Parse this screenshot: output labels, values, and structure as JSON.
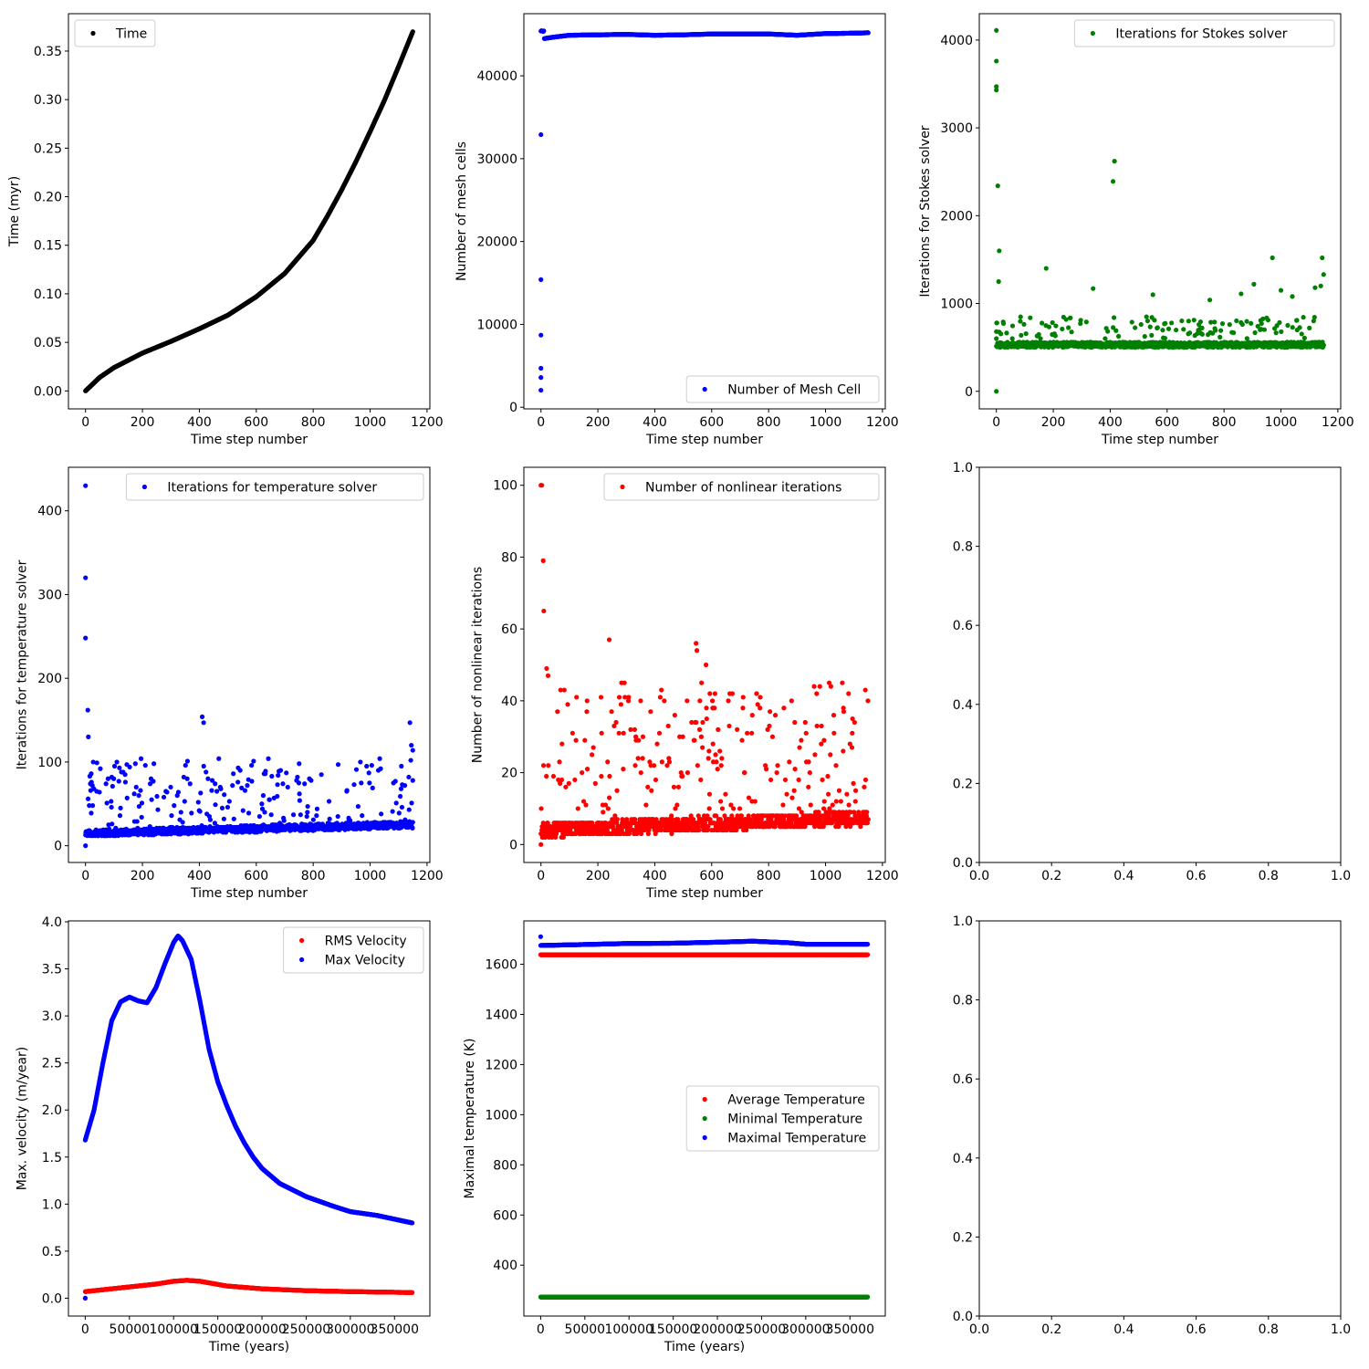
{
  "figure": {
    "background": "#ffffff"
  },
  "chart_data": [
    {
      "id": "p1",
      "type": "scatter",
      "title": "",
      "xlabel": "Time step number",
      "ylabel": "Time (myr)",
      "xlim": [
        -60,
        1210
      ],
      "ylim": [
        -0.0185,
        0.3885
      ],
      "xticks": [
        0,
        200,
        400,
        600,
        800,
        1000,
        1200
      ],
      "xtick_labels": [
        "0",
        "200",
        "400",
        "600",
        "800",
        "1000",
        "1200"
      ],
      "yticks": [
        0,
        0.05,
        0.1,
        0.15,
        0.2,
        0.25,
        0.3,
        0.35
      ],
      "ytick_labels": [
        "0.00",
        "0.05",
        "0.10",
        "0.15",
        "0.20",
        "0.25",
        "0.30",
        "0.35"
      ],
      "legend": {
        "position": "upper-left",
        "entries": [
          "Time"
        ]
      },
      "series": [
        {
          "name": "Time",
          "color": "#000000",
          "kind": "curve",
          "n": 1150,
          "x": [
            0,
            50,
            100,
            200,
            300,
            400,
            500,
            600,
            700,
            800,
            850,
            900,
            950,
            1000,
            1050,
            1100,
            1150
          ],
          "y": [
            0,
            0.014,
            0.024,
            0.039,
            0.051,
            0.064,
            0.078,
            0.097,
            0.121,
            0.155,
            0.18,
            0.207,
            0.236,
            0.267,
            0.299,
            0.334,
            0.37
          ]
        }
      ]
    },
    {
      "id": "p2",
      "type": "scatter",
      "title": "",
      "xlabel": "Time step number",
      "ylabel": "Number of mesh cells",
      "xlim": [
        -60,
        1210
      ],
      "ylim": [
        -200,
        47500
      ],
      "xticks": [
        0,
        200,
        400,
        600,
        800,
        1000,
        1200
      ],
      "xtick_labels": [
        "0",
        "200",
        "400",
        "600",
        "800",
        "1000",
        "1200"
      ],
      "yticks": [
        0,
        10000,
        20000,
        30000,
        40000
      ],
      "ytick_labels": [
        "0",
        "10000",
        "20000",
        "30000",
        "40000"
      ],
      "legend": {
        "position": "lower-right",
        "entries": [
          "Number of Mesh Cell"
        ]
      },
      "series": [
        {
          "name": "Number of Mesh Cell",
          "color": "#0000ff",
          "kind": "curve",
          "n": 1150,
          "x": [
            12,
            40,
            100,
            200,
            300,
            400,
            500,
            600,
            700,
            800,
            900,
            1000,
            1100,
            1150
          ],
          "y": [
            44500,
            44650,
            44900,
            44950,
            45000,
            44900,
            44950,
            45050,
            45050,
            45050,
            44900,
            45100,
            45150,
            45200
          ],
          "extra_points": [
            [
              0,
              2048
            ],
            [
              0,
              3584
            ],
            [
              0,
              4700
            ],
            [
              0,
              8700
            ],
            [
              0,
              15400
            ],
            [
              0,
              32900
            ],
            [
              0,
              45400
            ],
            [
              2,
              45450
            ],
            [
              5,
              45400
            ],
            [
              8,
              45350
            ],
            [
              10,
              45420
            ]
          ]
        }
      ]
    },
    {
      "id": "p3",
      "type": "scatter",
      "title": "",
      "xlabel": "Time step number",
      "ylabel": "Iterations for Stokes solver",
      "xlim": [
        -60,
        1210
      ],
      "ylim": [
        -200,
        4300
      ],
      "xticks": [
        0,
        200,
        400,
        600,
        800,
        1000,
        1200
      ],
      "xtick_labels": [
        "0",
        "200",
        "400",
        "600",
        "800",
        "1000",
        "1200"
      ],
      "yticks": [
        0,
        1000,
        2000,
        3000,
        4000
      ],
      "ytick_labels": [
        "0",
        "1000",
        "2000",
        "3000",
        "4000"
      ],
      "legend": {
        "position": "upper-right",
        "entries": [
          "Iterations for Stokes solver"
        ]
      },
      "series": [
        {
          "name": "Iterations for Stokes solver",
          "color": "#008000",
          "kind": "noisy",
          "n": 1150,
          "x_range": [
            0,
            1150
          ],
          "baseline": 500,
          "noise": [
            0,
            60
          ],
          "spike_prob": 0.1,
          "spike_range": [
            600,
            850
          ],
          "seed": 11,
          "extra_points": [
            [
              0,
              0
            ],
            [
              0,
              4110
            ],
            [
              0,
              3760
            ],
            [
              0,
              3470
            ],
            [
              0,
              3430
            ],
            [
              0,
              600
            ],
            [
              0,
              680
            ],
            [
              5,
              2340
            ],
            [
              10,
              1600
            ],
            [
              8,
              1250
            ],
            [
              175,
              1400
            ],
            [
              340,
              1170
            ],
            [
              410,
              2390
            ],
            [
              415,
              2620
            ],
            [
              550,
              1100
            ],
            [
              750,
              1040
            ],
            [
              860,
              1110
            ],
            [
              905,
              1220
            ],
            [
              970,
              1520
            ],
            [
              1000,
              1150
            ],
            [
              1040,
              1080
            ],
            [
              1120,
              1180
            ],
            [
              1140,
              1200
            ],
            [
              1145,
              1520
            ],
            [
              1150,
              1330
            ]
          ]
        }
      ]
    },
    {
      "id": "p4",
      "type": "scatter",
      "title": "",
      "xlabel": "Time step number",
      "ylabel": "Iterations for temperature solver",
      "xlim": [
        -60,
        1210
      ],
      "ylim": [
        -20,
        452
      ],
      "xticks": [
        0,
        200,
        400,
        600,
        800,
        1000,
        1200
      ],
      "xtick_labels": [
        "0",
        "200",
        "400",
        "600",
        "800",
        "1000",
        "1200"
      ],
      "yticks": [
        0,
        100,
        200,
        300,
        400
      ],
      "ytick_labels": [
        "0",
        "100",
        "200",
        "300",
        "400"
      ],
      "legend": {
        "position": "upper-right",
        "entries": [
          "Iterations for temperature solver"
        ]
      },
      "series": [
        {
          "name": "Iterations for temperature solver",
          "color": "#0000ff",
          "kind": "noisy",
          "n": 1150,
          "x_range": [
            0,
            1150
          ],
          "baseline": 11,
          "baseline_slope": 0.009,
          "noise": [
            0,
            8
          ],
          "spike_prob": 0.18,
          "spike_range": [
            20,
            105
          ],
          "seed": 23,
          "extra_points": [
            [
              0,
              0
            ],
            [
              0,
              430
            ],
            [
              0,
              320
            ],
            [
              0,
              248
            ],
            [
              8,
              162
            ],
            [
              10,
              130
            ],
            [
              15,
              83
            ],
            [
              20,
              86
            ],
            [
              410,
              154
            ],
            [
              415,
              147
            ],
            [
              1140,
              147
            ],
            [
              1145,
              120
            ],
            [
              1150,
              114
            ],
            [
              1150,
              78
            ]
          ]
        }
      ]
    },
    {
      "id": "p5",
      "type": "scatter",
      "title": "",
      "xlabel": "Time step number",
      "ylabel": "Number of nonlinear iterations",
      "xlim": [
        -60,
        1210
      ],
      "ylim": [
        -5,
        105
      ],
      "xticks": [
        0,
        200,
        400,
        600,
        800,
        1000,
        1200
      ],
      "xtick_labels": [
        "0",
        "200",
        "400",
        "600",
        "800",
        "1000",
        "1200"
      ],
      "yticks": [
        0,
        20,
        40,
        60,
        80,
        100
      ],
      "ytick_labels": [
        "0",
        "20",
        "40",
        "60",
        "80",
        "100"
      ],
      "legend": {
        "position": "upper-right",
        "entries": [
          "Number of nonlinear iterations"
        ]
      },
      "series": [
        {
          "name": "Number of nonlinear iterations",
          "color": "#ff0000",
          "kind": "noisy",
          "n": 1150,
          "x_range": [
            0,
            1150
          ],
          "baseline": 2,
          "baseline_slope": 0.003,
          "noise": [
            0,
            4
          ],
          "spike_prob": 0.2,
          "spike_range": [
            8,
            45
          ],
          "seed": 37,
          "extra_points": [
            [
              0,
              0
            ],
            [
              0,
              100
            ],
            [
              3,
              100
            ],
            [
              8,
              79
            ],
            [
              10,
              65
            ],
            [
              20,
              49
            ],
            [
              25,
              47
            ],
            [
              240,
              57
            ],
            [
              545,
              56
            ],
            [
              548,
              54
            ],
            [
              580,
              50
            ],
            [
              960,
              44
            ],
            [
              980,
              44
            ],
            [
              1140,
              43
            ]
          ]
        }
      ]
    },
    {
      "id": "p6",
      "type": "scatter",
      "title": "",
      "xlabel": "",
      "ylabel": "",
      "xlim": [
        0,
        1
      ],
      "ylim": [
        0,
        1
      ],
      "xticks": [
        0,
        0.2,
        0.4,
        0.6,
        0.8,
        1.0
      ],
      "xtick_labels": [
        "0.0",
        "0.2",
        "0.4",
        "0.6",
        "0.8",
        "1.0"
      ],
      "yticks": [
        0,
        0.2,
        0.4,
        0.6,
        0.8,
        1.0
      ],
      "ytick_labels": [
        "0.0",
        "0.2",
        "0.4",
        "0.6",
        "0.8",
        "1.0"
      ],
      "legend": null,
      "series": []
    },
    {
      "id": "p7",
      "type": "scatter",
      "title": "",
      "xlabel": "Time (years)",
      "ylabel": "Max. velocity (m/year)",
      "xlim": [
        -19000,
        390000
      ],
      "ylim": [
        -0.19,
        4.01
      ],
      "xticks": [
        0,
        50000,
        100000,
        150000,
        200000,
        250000,
        300000,
        350000
      ],
      "xtick_labels": [
        "0",
        "50000",
        "100000",
        "150000",
        "200000",
        "250000",
        "300000",
        "350000"
      ],
      "yticks": [
        0,
        0.5,
        1.0,
        1.5,
        2.0,
        2.5,
        3.0,
        3.5,
        4.0
      ],
      "ytick_labels": [
        "0.0",
        "0.5",
        "1.0",
        "1.5",
        "2.0",
        "2.5",
        "3.0",
        "3.5",
        "4.0"
      ],
      "legend": {
        "position": "upper-right",
        "entries": [
          "RMS Velocity",
          "Max Velocity"
        ]
      },
      "series": [
        {
          "name": "RMS Velocity",
          "color": "#ff0000",
          "kind": "curve",
          "n": 1150,
          "x": [
            0,
            50000,
            80000,
            100000,
            115000,
            130000,
            160000,
            200000,
            250000,
            300000,
            370000
          ],
          "y": [
            0.07,
            0.12,
            0.15,
            0.18,
            0.19,
            0.18,
            0.13,
            0.1,
            0.08,
            0.07,
            0.06
          ],
          "extra_points": [
            [
              0,
              0
            ]
          ]
        },
        {
          "name": "Max Velocity",
          "color": "#0000ff",
          "kind": "curve",
          "n": 1150,
          "x": [
            0,
            10000,
            20000,
            30000,
            40000,
            50000,
            60000,
            70000,
            80000,
            90000,
            100000,
            105000,
            110000,
            120000,
            130000,
            140000,
            150000,
            160000,
            170000,
            180000,
            190000,
            200000,
            220000,
            250000,
            280000,
            300000,
            330000,
            350000,
            370000
          ],
          "y": [
            1.68,
            2.0,
            2.5,
            2.95,
            3.15,
            3.2,
            3.16,
            3.14,
            3.3,
            3.55,
            3.78,
            3.85,
            3.8,
            3.6,
            3.15,
            2.65,
            2.3,
            2.05,
            1.83,
            1.65,
            1.5,
            1.38,
            1.22,
            1.08,
            0.98,
            0.92,
            0.88,
            0.84,
            0.8
          ],
          "extra_points": [
            [
              0,
              0
            ]
          ]
        }
      ]
    },
    {
      "id": "p8",
      "type": "scatter",
      "title": "",
      "xlabel": "Time (years)",
      "ylabel": "Maximal temperature (K)",
      "xlim": [
        -19000,
        390000
      ],
      "ylim": [
        197,
        1773
      ],
      "xticks": [
        0,
        50000,
        100000,
        150000,
        200000,
        250000,
        300000,
        350000
      ],
      "xtick_labels": [
        "0",
        "50000",
        "100000",
        "150000",
        "200000",
        "250000",
        "300000",
        "350000"
      ],
      "yticks": [
        400,
        600,
        800,
        1000,
        1200,
        1400,
        1600
      ],
      "ytick_labels": [
        "400",
        "600",
        "800",
        "1000",
        "1200",
        "1400",
        "1600"
      ],
      "legend": {
        "position": "center-right",
        "entries": [
          "Average Temperature",
          "Minimal Temperature",
          "Maximal Temperature"
        ]
      },
      "series": [
        {
          "name": "Average Temperature",
          "color": "#ff0000",
          "kind": "curve",
          "n": 1150,
          "x": [
            0,
            370000
          ],
          "y": [
            1638,
            1638
          ]
        },
        {
          "name": "Minimal Temperature",
          "color": "#008000",
          "kind": "curve",
          "n": 1150,
          "x": [
            0,
            370000
          ],
          "y": [
            273,
            273
          ]
        },
        {
          "name": "Maximal Temperature",
          "color": "#0000ff",
          "kind": "curve",
          "n": 1150,
          "x": [
            0,
            40000,
            100000,
            150000,
            200000,
            240000,
            280000,
            300000,
            370000
          ],
          "y": [
            1675,
            1678,
            1683,
            1684,
            1688,
            1692,
            1686,
            1680,
            1680
          ],
          "extra_points": [
            [
              0,
              1710
            ]
          ]
        }
      ]
    },
    {
      "id": "p9",
      "type": "scatter",
      "title": "",
      "xlabel": "",
      "ylabel": "",
      "xlim": [
        0,
        1
      ],
      "ylim": [
        0,
        1
      ],
      "xticks": [
        0,
        0.2,
        0.4,
        0.6,
        0.8,
        1.0
      ],
      "xtick_labels": [
        "0.0",
        "0.2",
        "0.4",
        "0.6",
        "0.8",
        "1.0"
      ],
      "yticks": [
        0,
        0.2,
        0.4,
        0.6,
        0.8,
        1.0
      ],
      "ytick_labels": [
        "0.0",
        "0.2",
        "0.4",
        "0.6",
        "0.8",
        "1.0"
      ],
      "legend": null,
      "series": []
    }
  ]
}
